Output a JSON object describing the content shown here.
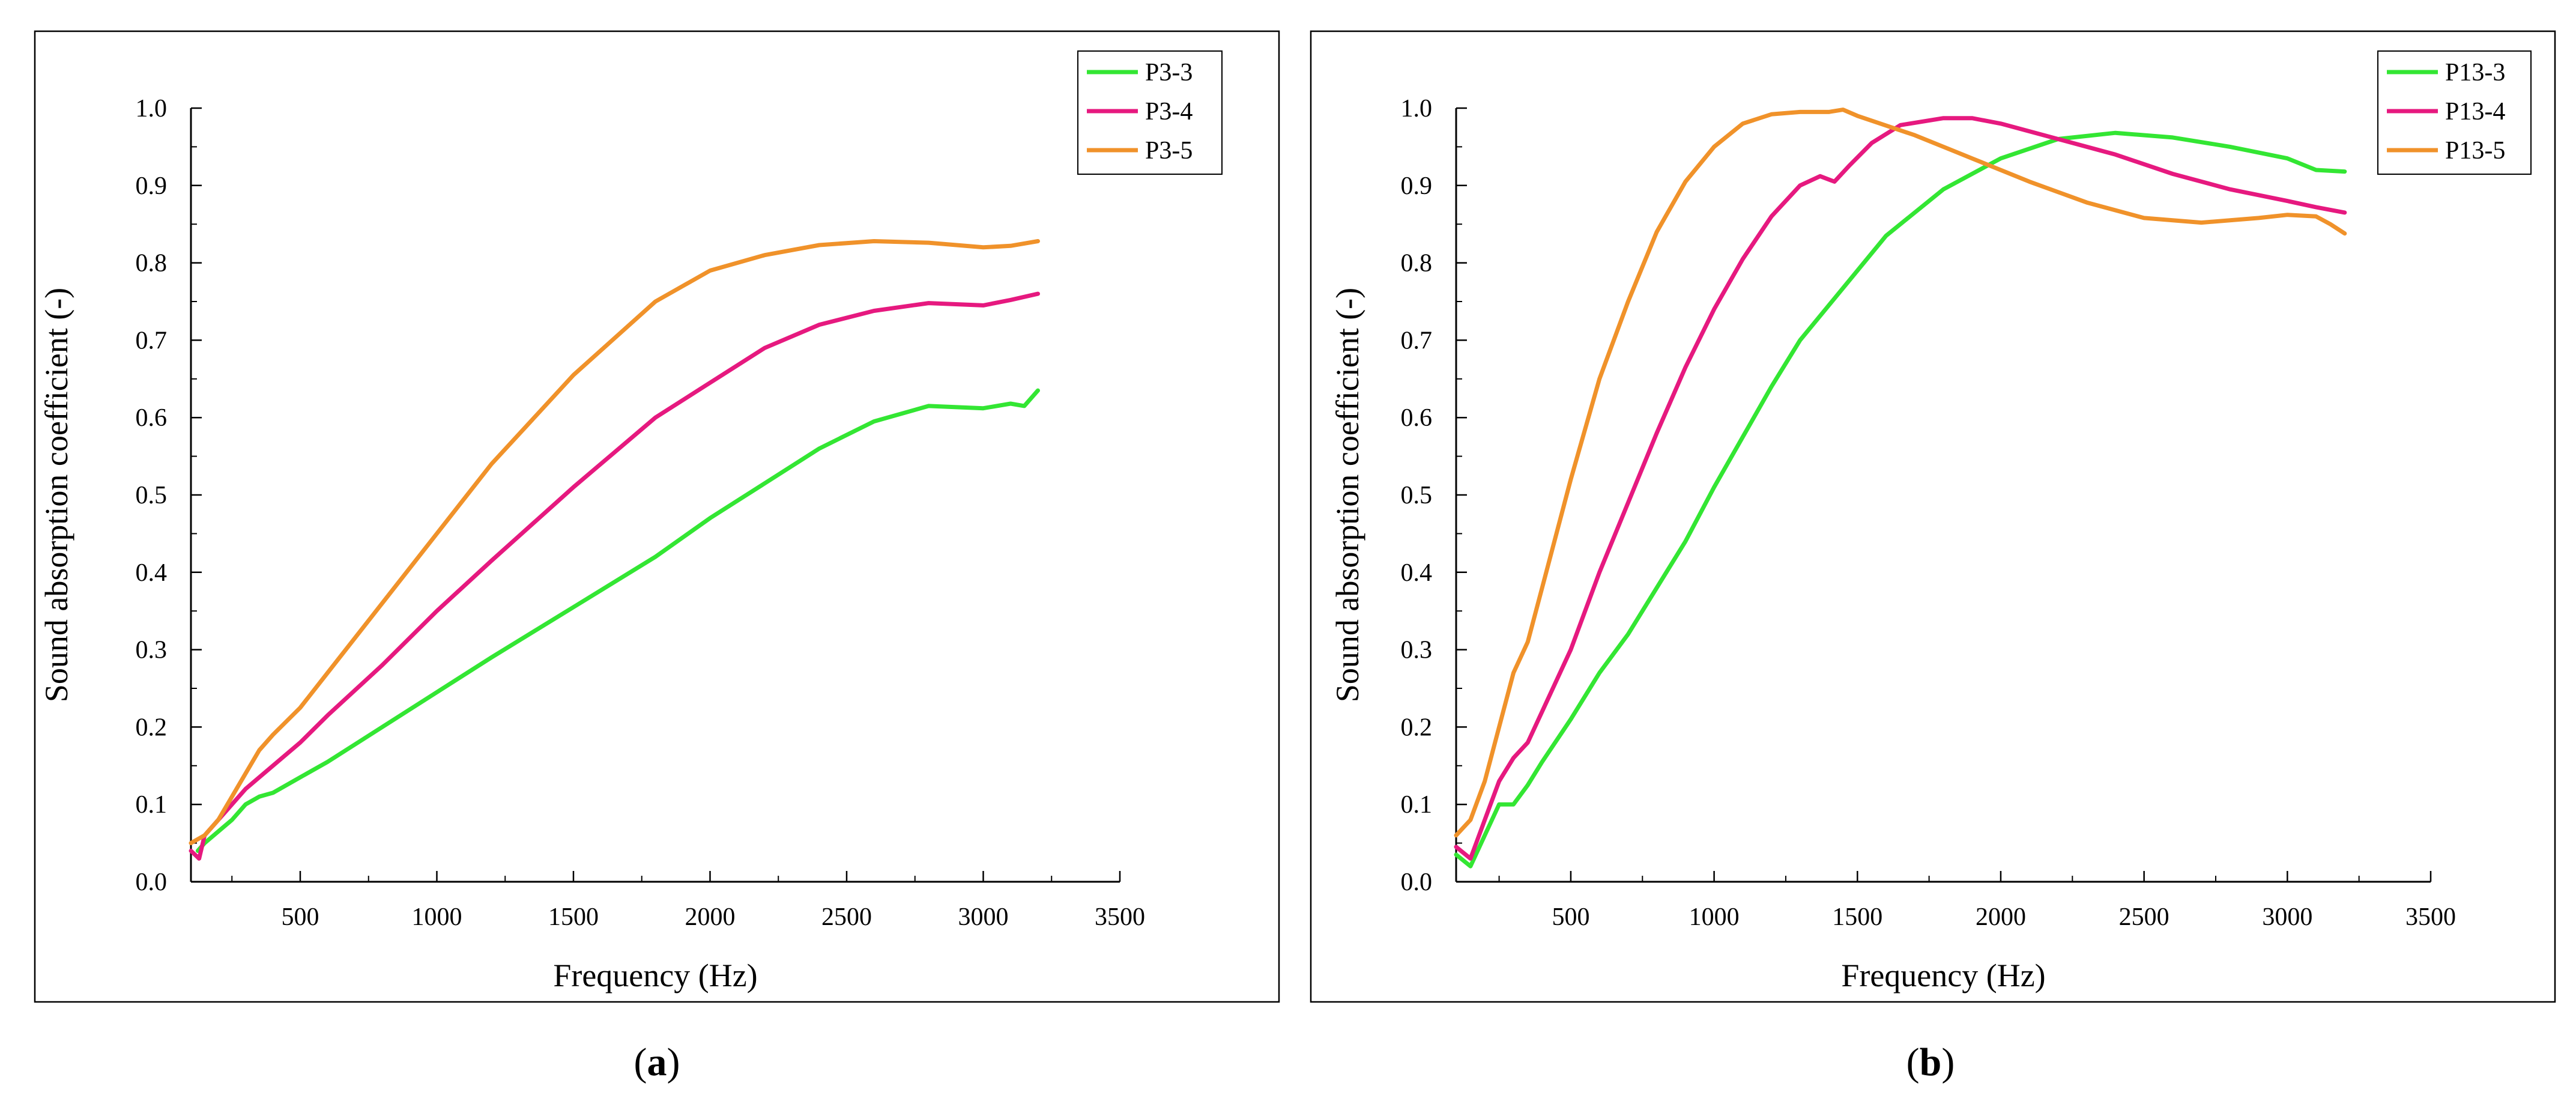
{
  "chart_data": [
    {
      "type": "line",
      "caption_label": "a",
      "xlabel": "Frequency (Hz)",
      "ylabel": "Sound absorption coefficient (-)",
      "xlim": [
        100,
        3500
      ],
      "ylim": [
        0,
        1.0
      ],
      "xticks": [
        500,
        1000,
        1500,
        2000,
        2500,
        3000,
        3500
      ],
      "yticks": [
        0.0,
        0.1,
        0.2,
        0.3,
        0.4,
        0.5,
        0.6,
        0.7,
        0.8,
        0.9,
        1.0
      ],
      "legend_position": "top-right",
      "series": [
        {
          "name": "P3-3",
          "color": "#33e633",
          "points": [
            [
              125,
              0.04
            ],
            [
              150,
              0.05
            ],
            [
              200,
              0.065
            ],
            [
              250,
              0.08
            ],
            [
              300,
              0.1
            ],
            [
              350,
              0.11
            ],
            [
              400,
              0.115
            ],
            [
              500,
              0.135
            ],
            [
              600,
              0.155
            ],
            [
              800,
              0.2
            ],
            [
              1000,
              0.245
            ],
            [
              1200,
              0.29
            ],
            [
              1500,
              0.355
            ],
            [
              1800,
              0.42
            ],
            [
              2000,
              0.47
            ],
            [
              2200,
              0.515
            ],
            [
              2400,
              0.56
            ],
            [
              2600,
              0.595
            ],
            [
              2800,
              0.615
            ],
            [
              3000,
              0.612
            ],
            [
              3100,
              0.618
            ],
            [
              3150,
              0.615
            ],
            [
              3200,
              0.635
            ]
          ]
        },
        {
          "name": "P3-4",
          "color": "#e6197f",
          "points": [
            [
              100,
              0.04
            ],
            [
              130,
              0.03
            ],
            [
              150,
              0.06
            ],
            [
              200,
              0.08
            ],
            [
              250,
              0.1
            ],
            [
              300,
              0.12
            ],
            [
              350,
              0.135
            ],
            [
              400,
              0.15
            ],
            [
              500,
              0.18
            ],
            [
              600,
              0.215
            ],
            [
              800,
              0.28
            ],
            [
              1000,
              0.35
            ],
            [
              1200,
              0.415
            ],
            [
              1500,
              0.51
            ],
            [
              1800,
              0.6
            ],
            [
              2000,
              0.645
            ],
            [
              2200,
              0.69
            ],
            [
              2400,
              0.72
            ],
            [
              2600,
              0.738
            ],
            [
              2800,
              0.748
            ],
            [
              3000,
              0.745
            ],
            [
              3100,
              0.752
            ],
            [
              3200,
              0.76
            ]
          ]
        },
        {
          "name": "P3-5",
          "color": "#f0922a",
          "points": [
            [
              100,
              0.05
            ],
            [
              150,
              0.06
            ],
            [
              200,
              0.08
            ],
            [
              250,
              0.11
            ],
            [
              300,
              0.14
            ],
            [
              350,
              0.17
            ],
            [
              400,
              0.19
            ],
            [
              500,
              0.225
            ],
            [
              600,
              0.27
            ],
            [
              800,
              0.36
            ],
            [
              1000,
              0.45
            ],
            [
              1200,
              0.54
            ],
            [
              1500,
              0.655
            ],
            [
              1800,
              0.75
            ],
            [
              2000,
              0.79
            ],
            [
              2200,
              0.81
            ],
            [
              2400,
              0.823
            ],
            [
              2600,
              0.828
            ],
            [
              2800,
              0.826
            ],
            [
              3000,
              0.82
            ],
            [
              3100,
              0.822
            ],
            [
              3200,
              0.828
            ]
          ]
        }
      ]
    },
    {
      "type": "line",
      "caption_label": "b",
      "xlabel": "Frequency (Hz)",
      "ylabel": "Sound absorption coefficient (-)",
      "xlim": [
        100,
        3500
      ],
      "ylim": [
        0,
        1.0
      ],
      "xticks": [
        500,
        1000,
        1500,
        2000,
        2500,
        3000,
        3500
      ],
      "yticks": [
        0.0,
        0.1,
        0.2,
        0.3,
        0.4,
        0.5,
        0.6,
        0.7,
        0.8,
        0.9,
        1.0
      ],
      "legend_position": "top-right",
      "series": [
        {
          "name": "P13-3",
          "color": "#33e633",
          "points": [
            [
              100,
              0.035
            ],
            [
              150,
              0.02
            ],
            [
              200,
              0.06
            ],
            [
              250,
              0.1
            ],
            [
              300,
              0.1
            ],
            [
              350,
              0.125
            ],
            [
              400,
              0.155
            ],
            [
              500,
              0.21
            ],
            [
              600,
              0.27
            ],
            [
              700,
              0.32
            ],
            [
              800,
              0.38
            ],
            [
              900,
              0.44
            ],
            [
              1000,
              0.51
            ],
            [
              1100,
              0.575
            ],
            [
              1200,
              0.64
            ],
            [
              1300,
              0.7
            ],
            [
              1400,
              0.745
            ],
            [
              1500,
              0.79
            ],
            [
              1600,
              0.835
            ],
            [
              1800,
              0.895
            ],
            [
              2000,
              0.935
            ],
            [
              2200,
              0.96
            ],
            [
              2400,
              0.968
            ],
            [
              2600,
              0.962
            ],
            [
              2800,
              0.95
            ],
            [
              3000,
              0.935
            ],
            [
              3100,
              0.92
            ],
            [
              3200,
              0.918
            ]
          ]
        },
        {
          "name": "P13-4",
          "color": "#e6197f",
          "points": [
            [
              100,
              0.045
            ],
            [
              150,
              0.03
            ],
            [
              200,
              0.08
            ],
            [
              250,
              0.13
            ],
            [
              300,
              0.16
            ],
            [
              350,
              0.18
            ],
            [
              400,
              0.22
            ],
            [
              500,
              0.3
            ],
            [
              600,
              0.4
            ],
            [
              700,
              0.49
            ],
            [
              800,
              0.58
            ],
            [
              900,
              0.665
            ],
            [
              1000,
              0.74
            ],
            [
              1100,
              0.805
            ],
            [
              1200,
              0.86
            ],
            [
              1300,
              0.9
            ],
            [
              1370,
              0.912
            ],
            [
              1420,
              0.905
            ],
            [
              1470,
              0.925
            ],
            [
              1550,
              0.955
            ],
            [
              1650,
              0.978
            ],
            [
              1800,
              0.987
            ],
            [
              1900,
              0.987
            ],
            [
              2000,
              0.98
            ],
            [
              2200,
              0.96
            ],
            [
              2400,
              0.94
            ],
            [
              2600,
              0.915
            ],
            [
              2800,
              0.895
            ],
            [
              3000,
              0.88
            ],
            [
              3100,
              0.872
            ],
            [
              3200,
              0.865
            ]
          ]
        },
        {
          "name": "P13-5",
          "color": "#f0922a",
          "points": [
            [
              100,
              0.06
            ],
            [
              150,
              0.08
            ],
            [
              200,
              0.13
            ],
            [
              250,
              0.2
            ],
            [
              300,
              0.27
            ],
            [
              350,
              0.31
            ],
            [
              400,
              0.38
            ],
            [
              500,
              0.52
            ],
            [
              600,
              0.65
            ],
            [
              700,
              0.75
            ],
            [
              800,
              0.84
            ],
            [
              900,
              0.905
            ],
            [
              1000,
              0.95
            ],
            [
              1100,
              0.98
            ],
            [
              1200,
              0.992
            ],
            [
              1300,
              0.995
            ],
            [
              1400,
              0.995
            ],
            [
              1450,
              0.998
            ],
            [
              1500,
              0.99
            ],
            [
              1700,
              0.965
            ],
            [
              1900,
              0.935
            ],
            [
              2100,
              0.905
            ],
            [
              2300,
              0.878
            ],
            [
              2500,
              0.858
            ],
            [
              2700,
              0.852
            ],
            [
              2900,
              0.858
            ],
            [
              3000,
              0.862
            ],
            [
              3100,
              0.86
            ],
            [
              3150,
              0.85
            ],
            [
              3200,
              0.838
            ]
          ]
        }
      ]
    }
  ]
}
